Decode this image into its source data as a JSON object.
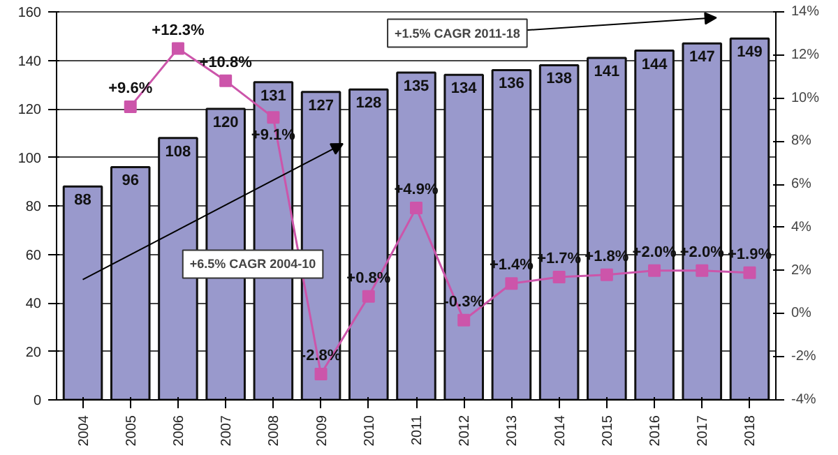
{
  "chart_data": {
    "type": "bar",
    "categories": [
      "2004",
      "2005",
      "2006",
      "2007",
      "2008",
      "2009",
      "2010",
      "2011",
      "2012",
      "2013",
      "2014",
      "2015",
      "2016",
      "2017",
      "2018"
    ],
    "series": [
      {
        "color": "#9999cc",
        "values": [
          88,
          96,
          108,
          120,
          131,
          127,
          128,
          135,
          134,
          136,
          138,
          141,
          144,
          147,
          149
        ],
        "data_labels": true
      },
      {
        "type": "line",
        "axis": "y2",
        "color": "#cc55aa",
        "marker": "square",
        "line_style": "solid",
        "values": [
          null,
          9.6,
          12.3,
          10.8,
          9.1,
          -2.8,
          0.8,
          4.9,
          -0.3,
          1.4,
          1.7,
          1.8,
          2.0,
          2.0,
          1.9
        ],
        "value_labels": [
          null,
          "+9.6%",
          "+12.3%",
          "+10.8%",
          "+9.1%",
          "-2.8%",
          "+0.8%",
          "+4.9%",
          "-0.3%",
          "+1.4%",
          "+1.7%",
          "+1.8%",
          "+2.0%",
          "+2.0%",
          "+1.9%"
        ]
      }
    ],
    "ylim": [
      0,
      160
    ],
    "yticks": [
      0,
      20,
      40,
      60,
      80,
      100,
      120,
      140,
      160
    ],
    "y2lim": [
      -4,
      14
    ],
    "y2ticks": [
      {
        "value": -4,
        "label": "-4%"
      },
      {
        "value": -2,
        "label": "-2%"
      },
      {
        "value": 0,
        "label": "0%"
      },
      {
        "value": 2,
        "label": "2%"
      },
      {
        "value": 4,
        "label": "4%"
      },
      {
        "value": 6,
        "label": "6%"
      },
      {
        "value": 8,
        "label": "8%"
      },
      {
        "value": 10,
        "label": "10%"
      },
      {
        "value": 12,
        "label": "12%"
      },
      {
        "value": 14,
        "label": "14%"
      }
    ],
    "grid": "y",
    "annotations": [
      "+6.5% CAGR 2004-10",
      "+1.5% CAGR 2011-18"
    ]
  }
}
